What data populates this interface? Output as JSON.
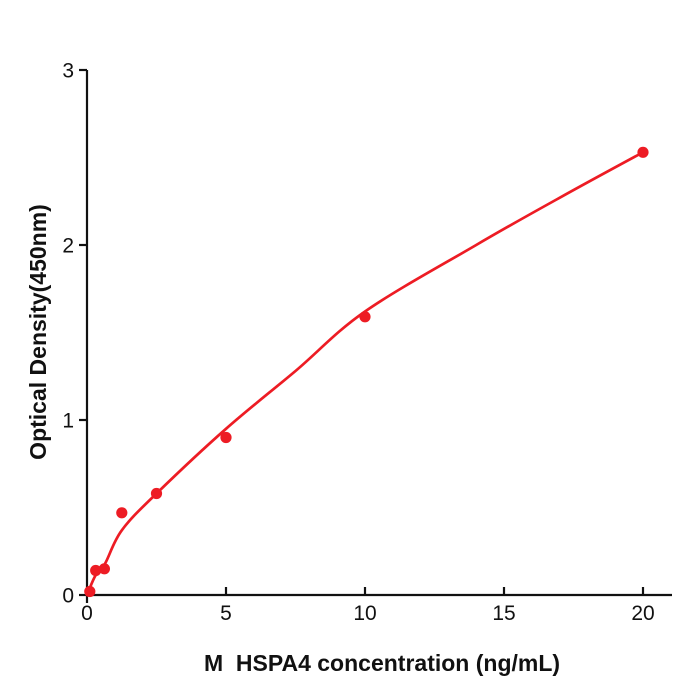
{
  "chart_data": {
    "type": "scatter",
    "title": "",
    "xlabel": "M  HSPA4 concentration (ng/mL)",
    "ylabel": "Optical Density(450nm)",
    "xlim": [
      0,
      21
    ],
    "ylim": [
      0,
      3
    ],
    "x_ticks": [
      0,
      5,
      10,
      15,
      20
    ],
    "y_ticks": [
      0,
      1,
      2,
      3
    ],
    "grid": false,
    "legend": "none",
    "colors": {
      "series": "#ED1C24",
      "axis": "#111111",
      "background": "#ffffff"
    },
    "series": [
      {
        "name": "standard-points",
        "type": "scatter",
        "color": "#ED1C24",
        "points": [
          {
            "x": 0.1,
            "y": 0.02
          },
          {
            "x": 0.3125,
            "y": 0.14
          },
          {
            "x": 0.625,
            "y": 0.15
          },
          {
            "x": 1.25,
            "y": 0.47
          },
          {
            "x": 2.5,
            "y": 0.58
          },
          {
            "x": 5,
            "y": 0.9
          },
          {
            "x": 10,
            "y": 1.59
          },
          {
            "x": 20,
            "y": 2.53
          }
        ]
      },
      {
        "name": "fit-curve",
        "type": "line",
        "color": "#ED1C24",
        "points": [
          {
            "x": 0,
            "y": 0
          },
          {
            "x": 0.3,
            "y": 0.11
          },
          {
            "x": 0.65,
            "y": 0.18
          },
          {
            "x": 1.25,
            "y": 0.37
          },
          {
            "x": 2.5,
            "y": 0.58
          },
          {
            "x": 5,
            "y": 0.95
          },
          {
            "x": 7.5,
            "y": 1.28
          },
          {
            "x": 10,
            "y": 1.62
          },
          {
            "x": 14,
            "y": 2.0
          },
          {
            "x": 17,
            "y": 2.27
          },
          {
            "x": 20,
            "y": 2.53
          }
        ]
      }
    ]
  }
}
